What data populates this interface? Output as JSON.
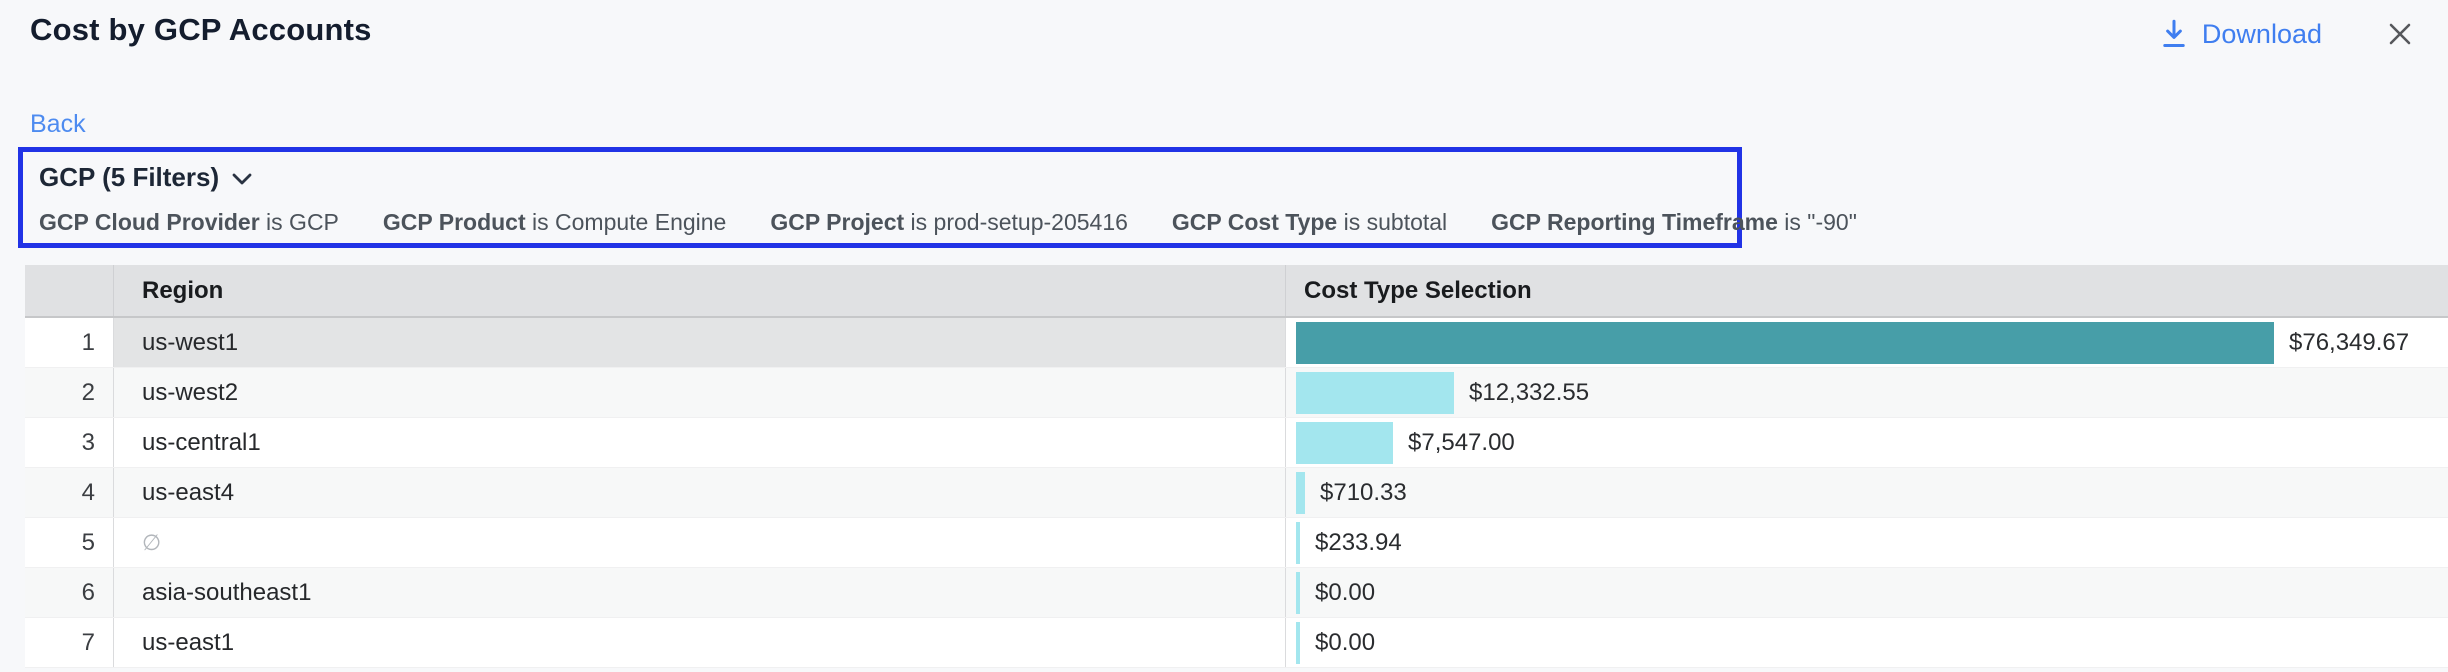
{
  "header": {
    "title": "Cost by GCP Accounts",
    "download_label": "Download"
  },
  "back_label": "Back",
  "filter_box": {
    "summary": "GCP (5 Filters)",
    "border_color": "#2133e6",
    "filters": [
      {
        "name": "GCP Cloud Provider",
        "condition": "is GCP"
      },
      {
        "name": "GCP Product",
        "condition": "is Compute Engine"
      },
      {
        "name": "GCP Project",
        "condition": "is prod-setup-205416"
      },
      {
        "name": "GCP Cost Type",
        "condition": "is subtotal"
      },
      {
        "name": "GCP Reporting Timeframe",
        "condition": "is \"-90\""
      }
    ]
  },
  "table": {
    "columns": {
      "num": "",
      "region": "Region",
      "cost": "Cost Type Selection"
    },
    "rows": [
      {
        "index": "1",
        "region": "us-west1",
        "amount": 76349.67,
        "label": "$76,349.67",
        "selected": true,
        "empty": false
      },
      {
        "index": "2",
        "region": "us-west2",
        "amount": 12332.55,
        "label": "$12,332.55",
        "selected": false,
        "empty": false
      },
      {
        "index": "3",
        "region": "us-central1",
        "amount": 7547.0,
        "label": "$7,547.00",
        "selected": false,
        "empty": false
      },
      {
        "index": "4",
        "region": "us-east4",
        "amount": 710.33,
        "label": "$710.33",
        "selected": false,
        "empty": false
      },
      {
        "index": "5",
        "region": "∅",
        "amount": 233.94,
        "label": "$233.94",
        "selected": false,
        "empty": true
      },
      {
        "index": "6",
        "region": "asia-southeast1",
        "amount": 0,
        "label": "$0.00",
        "selected": false,
        "empty": false
      },
      {
        "index": "7",
        "region": "us-east1",
        "amount": 0,
        "label": "$0.00",
        "selected": false,
        "empty": false
      }
    ]
  },
  "chart_data": {
    "type": "bar",
    "orientation": "horizontal",
    "title": "Cost by GCP Accounts",
    "categories": [
      "us-west1",
      "us-west2",
      "us-central1",
      "us-east4",
      "∅",
      "asia-southeast1",
      "us-east1"
    ],
    "values": [
      76349.67,
      12332.55,
      7547.0,
      710.33,
      233.94,
      0.0,
      0.0
    ],
    "value_labels": [
      "$76,349.67",
      "$12,332.55",
      "$7,547.00",
      "$710.33",
      "$233.94",
      "$0.00",
      "$0.00"
    ],
    "xlabel": "Cost Type Selection",
    "ylabel": "Region",
    "bar_color": "#a3e6ee",
    "max_bar_color": "#479ea8"
  },
  "colors": {
    "accent_blue": "#2133e6",
    "link_blue": "#4d8bf0",
    "teal_bar": "#479ea8",
    "cyan_bar": "#a3e6ee",
    "header_bg": "#e0e1e3",
    "page_bg": "#f7f8fa"
  }
}
